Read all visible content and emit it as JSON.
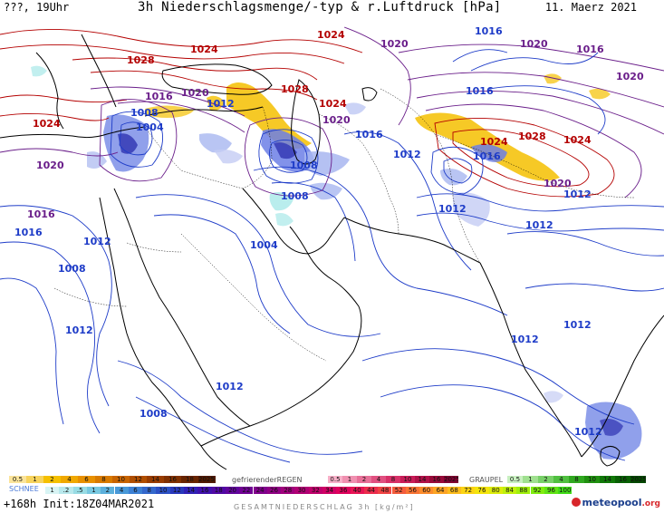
{
  "header": {
    "left": "???, 19Uhr",
    "title": "3h Niederschlagsmenge/-typ & r.Luftdruck [hPa]",
    "date": "11. Maerz 2021"
  },
  "isobar_labels": [
    {
      "text": "1024",
      "color": "#b40000"
    },
    {
      "text": "1024",
      "color": "#b40000"
    },
    {
      "text": "1028",
      "color": "#b40000"
    },
    {
      "text": "1024",
      "color": "#b40000"
    },
    {
      "text": "1020",
      "color": "#6a1e8a"
    },
    {
      "text": "1016",
      "color": "#6a1e8a"
    },
    {
      "text": "1012",
      "color": "#1e3cc8"
    },
    {
      "text": "1008",
      "color": "#1e3cc8"
    },
    {
      "text": "1004",
      "color": "#1e3cc8"
    },
    {
      "text": "1028",
      "color": "#b40000"
    },
    {
      "text": "1024",
      "color": "#b40000"
    },
    {
      "text": "1020",
      "color": "#6a1e8a"
    },
    {
      "text": "1016",
      "color": "#1e3cc8"
    },
    {
      "text": "1008",
      "color": "#1e3cc8"
    },
    {
      "text": "1008",
      "color": "#1e3cc8"
    },
    {
      "text": "1012",
      "color": "#1e3cc8"
    },
    {
      "text": "1016",
      "color": "#1e3cc8"
    },
    {
      "text": "1020",
      "color": "#6a1e8a"
    },
    {
      "text": "1016",
      "color": "#6a1e8a"
    },
    {
      "text": "1020",
      "color": "#6a1e8a"
    },
    {
      "text": "1016",
      "color": "#1e3cc8"
    },
    {
      "text": "1024",
      "color": "#b40000"
    },
    {
      "text": "1028",
      "color": "#b40000"
    },
    {
      "text": "1024",
      "color": "#b40000"
    },
    {
      "text": "1020",
      "color": "#6a1e8a"
    },
    {
      "text": "1016",
      "color": "#1e3cc8"
    },
    {
      "text": "1012",
      "color": "#1e3cc8"
    },
    {
      "text": "1020",
      "color": "#6a1e8a"
    },
    {
      "text": "1012",
      "color": "#1e3cc8"
    },
    {
      "text": "1012",
      "color": "#1e3cc8"
    },
    {
      "text": "1012",
      "color": "#1e3cc8"
    },
    {
      "text": "1012",
      "color": "#1e3cc8"
    },
    {
      "text": "1012",
      "color": "#1e3cc8"
    },
    {
      "text": "1020",
      "color": "#6a1e8a"
    },
    {
      "text": "1016",
      "color": "#6a1e8a"
    },
    {
      "text": "1016",
      "color": "#1e3cc8"
    },
    {
      "text": "1012",
      "color": "#1e3cc8"
    },
    {
      "text": "1008",
      "color": "#1e3cc8"
    },
    {
      "text": "1004",
      "color": "#1e3cc8"
    },
    {
      "text": "1012",
      "color": "#1e3cc8"
    },
    {
      "text": "1008",
      "color": "#1e3cc8"
    },
    {
      "text": "1012",
      "color": "#1e3cc8"
    }
  ],
  "legend": {
    "rain_label": "REGEN",
    "rain_values": [
      "0.5",
      "1",
      "2",
      "4",
      "6",
      "8",
      "10",
      "12",
      "14",
      "16",
      "18",
      "2025+"
    ],
    "freezing_label": "gefrierenderREGEN",
    "freezing_values": [
      "0.5",
      "1",
      "2",
      "4",
      "8",
      "10",
      "14",
      "16",
      "2025+"
    ],
    "graupel_label": "GRAUPEL",
    "graupel_values": [
      "0.5",
      "1",
      "2",
      "4",
      "8",
      "10",
      "14",
      "16",
      "2025+"
    ],
    "snow_label": "SCHNEE",
    "snow_values": [
      "1",
      ".2",
      ".5",
      "1",
      "2",
      "4",
      "6",
      "8",
      "10",
      "12",
      "14",
      "16",
      "18",
      "20",
      "22",
      "24",
      "26",
      "28",
      "30",
      "32",
      "34",
      "36",
      "40",
      "44",
      "48",
      "52",
      "56",
      "60",
      "64",
      "68",
      "72",
      "76",
      "80",
      "84",
      "88",
      "92",
      "96",
      "100"
    ],
    "total_label": "GESAMTNIEDERSCHLAG 3h [kg/m²]"
  },
  "footer": {
    "left": "+168h Init:18Z04MAR2021",
    "logo": "meteopool",
    "logo_suffix": ".org"
  },
  "colors": {
    "high": "#b40000",
    "mid": "#6a1e8a",
    "low": "#1e3cc8",
    "rain": "#f5c000",
    "snow": "#7c8fe8",
    "coast": "#000000"
  }
}
